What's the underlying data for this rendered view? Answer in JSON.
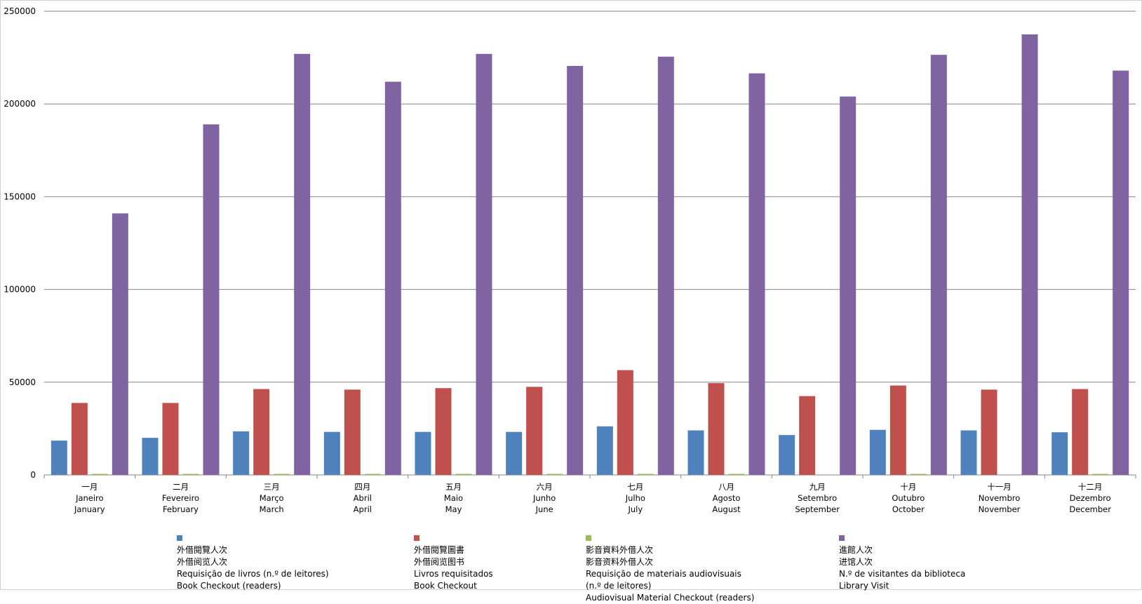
{
  "chart_data": {
    "type": "bar",
    "title": "",
    "xlabel": "",
    "ylabel": "",
    "ylim": [
      0,
      250000
    ],
    "yticks": [
      "0",
      "50000",
      "100000",
      "150000",
      "200000",
      "250000"
    ],
    "grid": true,
    "legend_position": "bottom",
    "categories": [
      {
        "zh": "一月",
        "pt": "Janeiro",
        "en": "January"
      },
      {
        "zh": "二月",
        "pt": "Fevereiro",
        "en": "February"
      },
      {
        "zh": "三月",
        "pt": "Março",
        "en": "March"
      },
      {
        "zh": "四月",
        "pt": "Abril",
        "en": "April"
      },
      {
        "zh": "五月",
        "pt": "Maio",
        "en": "May"
      },
      {
        "zh": "六月",
        "pt": "Junho",
        "en": "June"
      },
      {
        "zh": "七月",
        "pt": "Julho",
        "en": "July"
      },
      {
        "zh": "八月",
        "pt": "Agosto",
        "en": "August"
      },
      {
        "zh": "九月",
        "pt": "Setembro",
        "en": "September"
      },
      {
        "zh": "十月",
        "pt": "Outubro",
        "en": "October"
      },
      {
        "zh": "十一月",
        "pt": "Novembro",
        "en": "November"
      },
      {
        "zh": "十二月",
        "pt": "Dezembro",
        "en": "December"
      }
    ],
    "series": [
      {
        "name": "外借閱覽人次 外借阅览人次 Requisição de livros (n.º de leitores) Book Checkout (readers)",
        "legend_lines": [
          "外借閱覽人次",
          "外借阅览人次",
          "Requisição de livros (n.º de leitores)",
          "Book Checkout (readers)"
        ],
        "color": "#4f81bd",
        "values": [
          18500,
          20000,
          23500,
          23200,
          23200,
          23200,
          26200,
          24000,
          21500,
          24300,
          24000,
          23000
        ]
      },
      {
        "name": "外借閱覽圖書 外借阅览图书 Livros requisitados Book Checkout",
        "legend_lines": [
          "外借閱覽圖書",
          "外借阅览图书",
          "Livros requisitados",
          "Book Checkout"
        ],
        "color": "#c0504d",
        "values": [
          38800,
          38800,
          46300,
          46000,
          46800,
          47500,
          56500,
          49500,
          42500,
          48200,
          46000,
          46300
        ]
      },
      {
        "name": "影音資料外借人次 影音资料外借人次 Requisição de materiais audiovisuais (n.º de leitores) Audiovisual Material Checkout (readers)",
        "legend_lines": [
          "影音資料外借人次",
          "影音资料外借人次",
          "Requisição de materiais audiovisuais",
          "(n.º de leitores)",
          "Audiovisual Material Checkout (readers)"
        ],
        "color": "#9bbb59",
        "values": [
          500,
          500,
          500,
          500,
          500,
          500,
          500,
          500,
          0,
          500,
          0,
          500
        ]
      },
      {
        "name": "進館人次 进馆人次 N.º de visitantes da biblioteca Library Visit",
        "legend_lines": [
          "進館人次",
          "进馆人次",
          "N.º de visitantes da biblioteca",
          "Library Visit"
        ],
        "color": "#8064a2",
        "values": [
          141000,
          189000,
          227000,
          212000,
          227000,
          220500,
          225500,
          216500,
          204000,
          226500,
          237500,
          218000
        ]
      }
    ]
  }
}
